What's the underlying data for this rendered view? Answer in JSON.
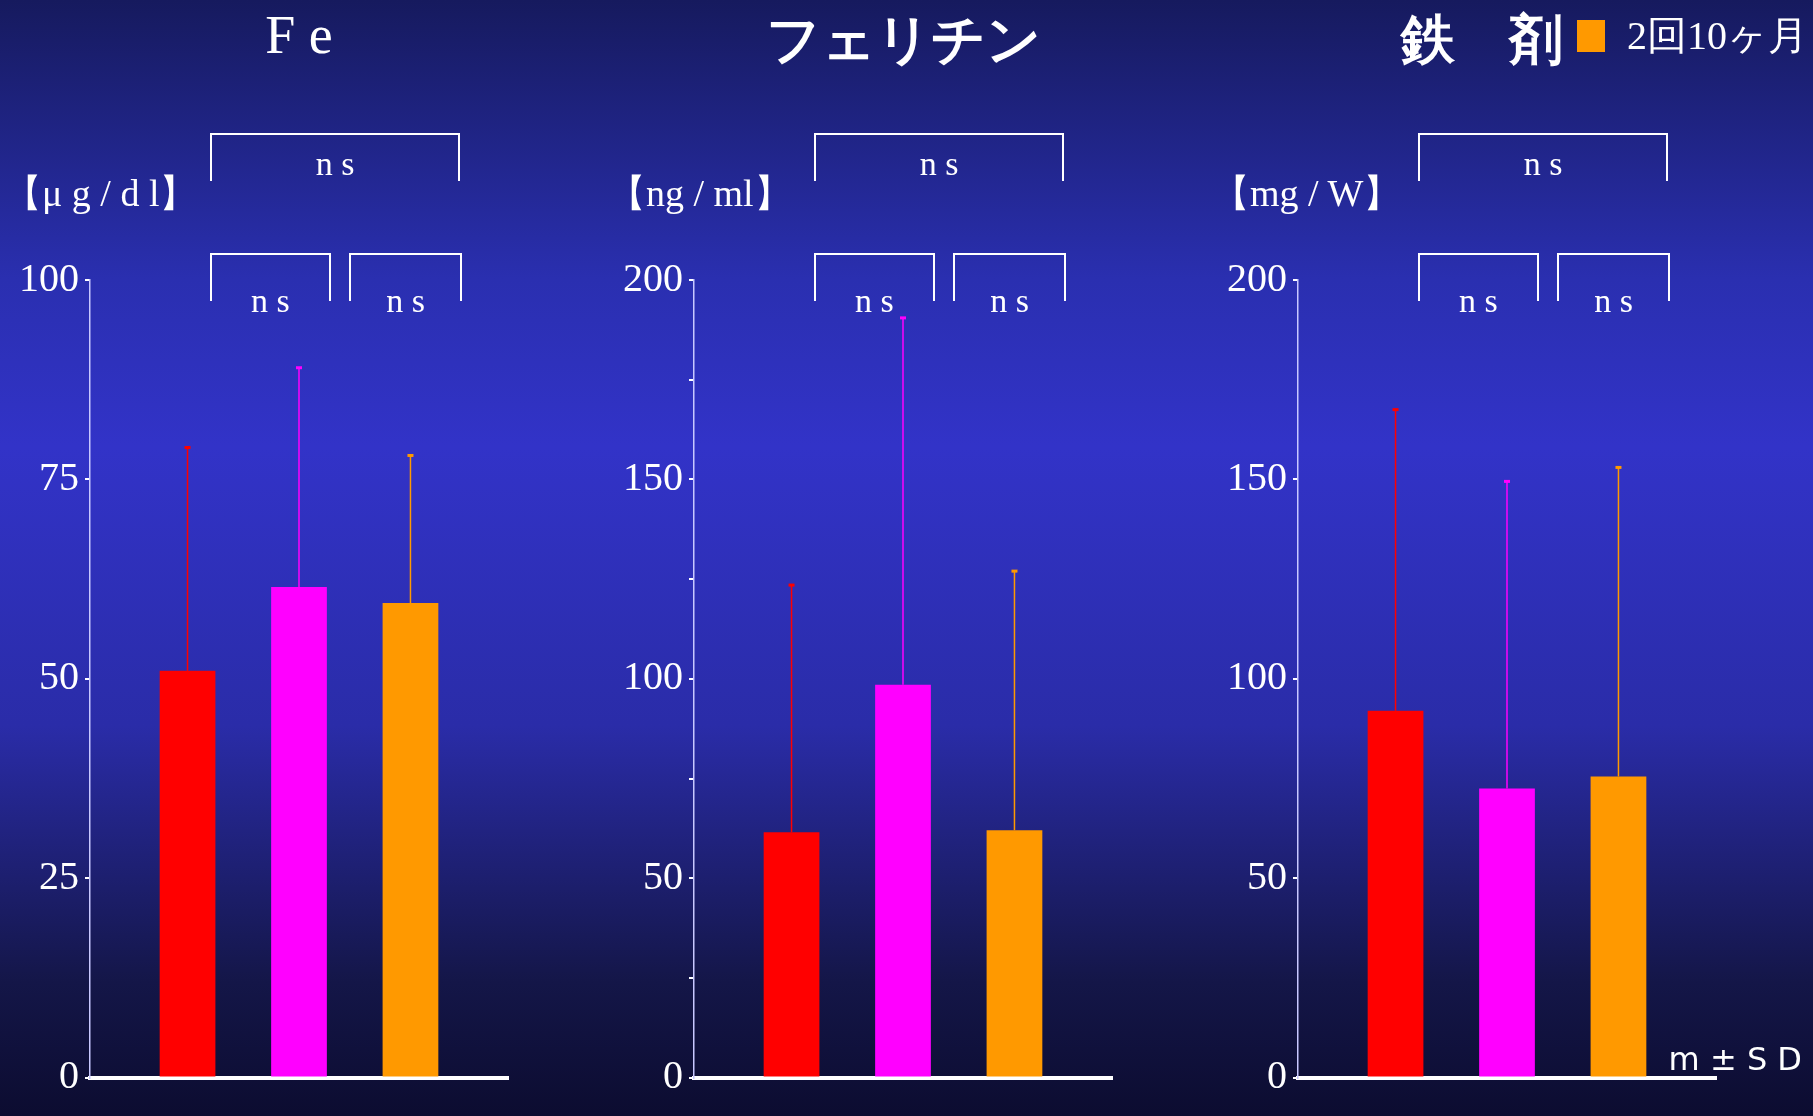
{
  "chart_data": [
    {
      "type": "bar",
      "title": "F e",
      "ylabel": "【μ g / d l】",
      "categories": [
        null
      ],
      "series": [
        {
          "color": "#ff0000",
          "values": [
            51
          ],
          "errors": [
            [
              51,
              79
            ]
          ]
        },
        {
          "color": "#ff00ff",
          "values": [
            61.5
          ],
          "errors": [
            [
              61.5,
              89
            ]
          ]
        },
        {
          "color": "#ff9900",
          "values": [
            59.5
          ],
          "errors": [
            [
              59.5,
              78
            ]
          ]
        }
      ],
      "ylim": [
        0,
        100
      ],
      "yticks": [
        0,
        25,
        50,
        75,
        100
      ],
      "annotations": [
        "n s",
        "n s",
        "n s"
      ]
    },
    {
      "type": "bar",
      "title": "フェリチン",
      "ylabel": "【ng / ml】",
      "categories": [
        null
      ],
      "series": [
        {
          "color": "#ff0000",
          "values": [
            61.5
          ],
          "errors": [
            [
              61.5,
              123.5
            ]
          ]
        },
        {
          "color": "#ff00ff",
          "values": [
            98.5
          ],
          "errors": [
            [
              98.5,
              190.5
            ]
          ]
        },
        {
          "color": "#ff9900",
          "values": [
            62
          ],
          "errors": [
            [
              62,
              127
            ]
          ]
        }
      ],
      "ylim": [
        0,
        200
      ],
      "yticks": [
        0,
        {
          "value": 25,
          "label": null
        },
        50,
        {
          "value": 75,
          "label": null
        },
        100,
        {
          "value": 125,
          "label": null
        },
        150,
        {
          "value": 175,
          "label": null
        },
        200
      ],
      "annotations": [
        "n s",
        "n s",
        "n s"
      ]
    },
    {
      "type": "bar",
      "title": "鉄　剤",
      "ylabel": "【mg / W】",
      "categories": [
        null
      ],
      "series": [
        {
          "color": "#ff0000",
          "values": [
            92
          ],
          "errors": [
            [
              92,
              167.5
            ]
          ]
        },
        {
          "color": "#ff00ff",
          "values": [
            72.5
          ],
          "errors": [
            [
              72.5,
              149.5
            ]
          ]
        },
        {
          "name": "2回10ヶ月",
          "color": "#ff9900",
          "values": [
            75.5
          ],
          "errors": [
            [
              75.5,
              153
            ]
          ]
        }
      ],
      "ylim": [
        0,
        200
      ],
      "yticks": [
        0,
        50,
        100,
        150,
        200
      ],
      "legend": "top right",
      "annotations": [
        "n s",
        "n s",
        "n s",
        "m ± S D"
      ]
    }
  ]
}
